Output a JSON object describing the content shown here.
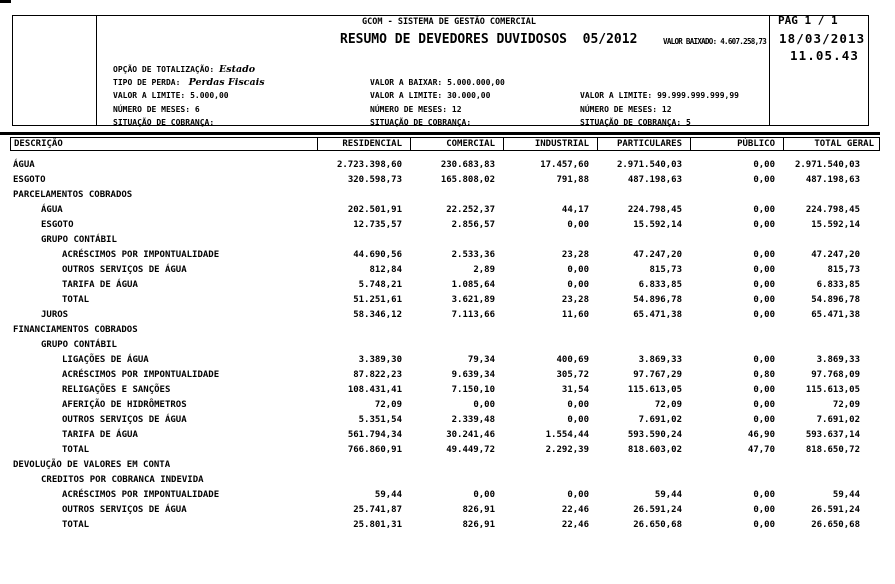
{
  "colors": {
    "text": "#000000",
    "background": "#ffffff",
    "rule": "#000000"
  },
  "header": {
    "system_title": "GCOM - SISTEMA DE GESTÃO COMERCIAL",
    "report_title": "RESUMO DE DEVEDORES DUVIDOSOS  05/2012",
    "valor_baixado": "VALOR BAIXADO: 4.607.258,73",
    "page_info": "PAG 1 / 1",
    "date": "18/03/2013",
    "time": "11.05.43"
  },
  "parameters": {
    "rows": [
      [
        {
          "label": "OPÇÃO DE TOTALIZAÇÃO:",
          "value": "Estado",
          "italic": true
        },
        null,
        null
      ],
      [
        {
          "label": "TIPO DE PERDA:",
          "value": " Perdas Fiscais",
          "italic": true
        },
        {
          "label": "VALOR A BAIXAR:",
          "value": "5.000.000,00"
        },
        null
      ],
      [
        {
          "label": "VALOR A LIMITE:",
          "value": "5.000,00"
        },
        {
          "label": "VALOR A LIMITE:",
          "value": "30.000,00"
        },
        {
          "label": "VALOR A LIMITE:",
          "value": "99.999.999.999,99"
        }
      ],
      [
        {
          "label": "NÚMERO DE MESES:",
          "value": "6"
        },
        {
          "label": "NÚMERO DE MESES:",
          "value": "12"
        },
        {
          "label": "NÚMERO DE MESES:",
          "value": "12"
        }
      ],
      [
        {
          "label": "SITUAÇÃO DE COBRANÇA:",
          "value": ""
        },
        {
          "label": "SITUAÇÃO DE COBRANÇA:",
          "value": ""
        },
        {
          "label": "SITUAÇÃO DE COBRANÇA:",
          "value": "5"
        }
      ]
    ]
  },
  "table": {
    "columns": [
      "DESCRIÇÃO",
      "RESIDENCIAL",
      "COMERCIAL",
      "INDUSTRIAL",
      "PARTICULARES",
      "PÚBLICO",
      "TOTAL GERAL"
    ],
    "rows": [
      {
        "label": "ÁGUA",
        "indent": 0,
        "values": [
          "2.723.398,60",
          "230.683,83",
          "17.457,60",
          "2.971.540,03",
          "0,00",
          "2.971.540,03"
        ]
      },
      {
        "label": "ESGOTO",
        "indent": 0,
        "values": [
          "320.598,73",
          "165.808,02",
          "791,88",
          "487.198,63",
          "0,00",
          "487.198,63"
        ]
      },
      {
        "label": "PARCELAMENTOS COBRADOS",
        "indent": 0,
        "values": null
      },
      {
        "label": "ÁGUA",
        "indent": 1,
        "values": [
          "202.501,91",
          "22.252,37",
          "44,17",
          "224.798,45",
          "0,00",
          "224.798,45"
        ]
      },
      {
        "label": "ESGOTO",
        "indent": 1,
        "values": [
          "12.735,57",
          "2.856,57",
          "0,00",
          "15.592,14",
          "0,00",
          "15.592,14"
        ]
      },
      {
        "label": "GRUPO CONTÁBIL",
        "indent": 1,
        "values": null
      },
      {
        "label": "ACRÉSCIMOS POR IMPONTUALIDADE",
        "indent": 2,
        "values": [
          "44.690,56",
          "2.533,36",
          "23,28",
          "47.247,20",
          "0,00",
          "47.247,20"
        ]
      },
      {
        "label": "OUTROS SERVIÇOS DE ÁGUA",
        "indent": 2,
        "values": [
          "812,84",
          "2,89",
          "0,00",
          "815,73",
          "0,00",
          "815,73"
        ]
      },
      {
        "label": "TARIFA DE ÁGUA",
        "indent": 2,
        "values": [
          "5.748,21",
          "1.085,64",
          "0,00",
          "6.833,85",
          "0,00",
          "6.833,85"
        ]
      },
      {
        "label": "TOTAL",
        "indent": 2,
        "values": [
          "51.251,61",
          "3.621,89",
          "23,28",
          "54.896,78",
          "0,00",
          "54.896,78"
        ]
      },
      {
        "label": "JUROS",
        "indent": 1,
        "values": [
          "58.346,12",
          "7.113,66",
          "11,60",
          "65.471,38",
          "0,00",
          "65.471,38"
        ]
      },
      {
        "label": "FINANCIAMENTOS COBRADOS",
        "indent": 0,
        "values": null
      },
      {
        "label": "GRUPO CONTÁBIL",
        "indent": 1,
        "values": null
      },
      {
        "label": "LIGAÇÕES DE ÁGUA",
        "indent": 2,
        "values": [
          "3.389,30",
          "79,34",
          "400,69",
          "3.869,33",
          "0,00",
          "3.869,33"
        ]
      },
      {
        "label": "ACRÉSCIMOS POR IMPONTUALIDADE",
        "indent": 2,
        "values": [
          "87.822,23",
          "9.639,34",
          "305,72",
          "97.767,29",
          "0,80",
          "97.768,09"
        ]
      },
      {
        "label": "RELIGAÇÕES E SANÇÕES",
        "indent": 2,
        "values": [
          "108.431,41",
          "7.150,10",
          "31,54",
          "115.613,05",
          "0,00",
          "115.613,05"
        ]
      },
      {
        "label": "AFERIÇÃO DE HIDRÔMETROS",
        "indent": 2,
        "values": [
          "72,09",
          "0,00",
          "0,00",
          "72,09",
          "0,00",
          "72,09"
        ]
      },
      {
        "label": "OUTROS SERVIÇOS DE ÁGUA",
        "indent": 2,
        "values": [
          "5.351,54",
          "2.339,48",
          "0,00",
          "7.691,02",
          "0,00",
          "7.691,02"
        ]
      },
      {
        "label": "TARIFA DE ÁGUA",
        "indent": 2,
        "values": [
          "561.794,34",
          "30.241,46",
          "1.554,44",
          "593.590,24",
          "46,90",
          "593.637,14"
        ]
      },
      {
        "label": "TOTAL",
        "indent": 2,
        "values": [
          "766.860,91",
          "49.449,72",
          "2.292,39",
          "818.603,02",
          "47,70",
          "818.650,72"
        ]
      },
      {
        "label": "DEVOLUÇÃO DE VALORES EM CONTA",
        "indent": 0,
        "values": null
      },
      {
        "label": "CREDITOS POR COBRANCA INDEVIDA",
        "indent": 1,
        "values": null
      },
      {
        "label": "ACRÉSCIMOS POR IMPONTUALIDADE",
        "indent": 2,
        "values": [
          "59,44",
          "0,00",
          "0,00",
          "59,44",
          "0,00",
          "59,44"
        ]
      },
      {
        "label": "OUTROS SERVIÇOS DE ÁGUA",
        "indent": 2,
        "values": [
          "25.741,87",
          "826,91",
          "22,46",
          "26.591,24",
          "0,00",
          "26.591,24"
        ]
      },
      {
        "label": "TOTAL",
        "indent": 2,
        "values": [
          "25.801,31",
          "826,91",
          "22,46",
          "26.650,68",
          "0,00",
          "26.650,68"
        ]
      }
    ]
  }
}
